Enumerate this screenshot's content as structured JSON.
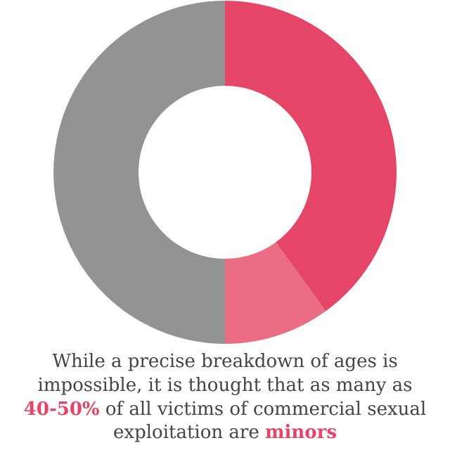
{
  "chart_data": {
    "type": "pie",
    "values": [
      40,
      10,
      50
    ],
    "colors": [
      "#e54566",
      "#ea6d83",
      "#939393"
    ],
    "caption": [
      [
        {
          "text": "While a precise breakdown of ages is",
          "highlight": false
        }
      ],
      [
        {
          "text": "impossible, it is thought that as many as",
          "highlight": false
        }
      ],
      [
        {
          "text": "40-50%",
          "highlight": true
        },
        {
          "text": " of all victims of commercial sexual",
          "highlight": false
        }
      ],
      [
        {
          "text": "exploitation are ",
          "highlight": false
        },
        {
          "text": "minors",
          "highlight": true
        }
      ]
    ]
  }
}
